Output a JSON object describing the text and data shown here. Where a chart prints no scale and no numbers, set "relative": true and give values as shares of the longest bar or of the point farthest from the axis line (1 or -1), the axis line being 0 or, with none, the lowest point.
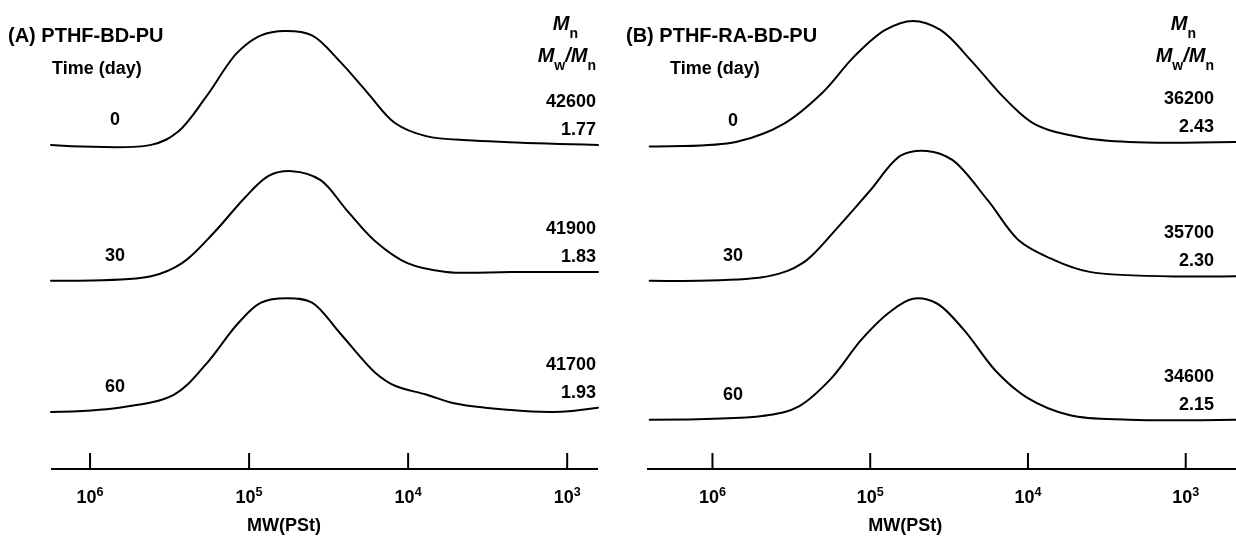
{
  "chart_data": [
    {
      "type": "line",
      "title": "(A) PTHF-BD-PU",
      "xlabel": "MW(PSt)",
      "legend_title": "Time (day)",
      "relative": true,
      "log": "x",
      "grid": false,
      "marker": "none",
      "line_style": "solid",
      "xlim": [
        1760000,
        640
      ],
      "xticks": [
        {
          "value": 1000000,
          "label": "10$^{6}$"
        },
        {
          "value": 100000,
          "label": "10$^{5}$"
        },
        {
          "value": 10000,
          "label": "10$^{4}$"
        },
        {
          "value": 1000,
          "label": "10$^{3}$"
        }
      ],
      "annotations": [
        "M$_{n}$",
        "M$_{w}$/M$_{n}$",
        "42600",
        "1.77",
        "41900",
        "1.83",
        "41700",
        "1.93"
      ],
      "series": [
        {
          "name": "0",
          "color": "#000000",
          "x": [
            1760000,
            413000,
            280000,
            186000,
            119000,
            84100,
            59400,
            40200,
            26800,
            18100,
            12100,
            7710,
            3900,
            640
          ],
          "values": [
            0.74,
            0.74,
            0.77,
            0.85,
            0.95,
            0.99,
            1,
            0.99,
            0.93,
            0.86,
            0.79,
            0.76,
            0.75,
            0.74
          ]
        },
        {
          "name": "30",
          "color": "#000000",
          "x": [
            1760000,
            413000,
            264000,
            166000,
            106000,
            74900,
            53700,
            35700,
            24200,
            16100,
            10100,
            5770,
            2190,
            640
          ],
          "values": [
            0.43,
            0.44,
            0.47,
            0.54,
            0.62,
            0.67,
            0.68,
            0.66,
            0.59,
            0.52,
            0.47,
            0.45,
            0.45,
            0.45
          ]
        },
        {
          "name": "60",
          "color": "#000000",
          "x": [
            1760000,
            658000,
            296000,
            186000,
            119000,
            84100,
            56900,
            40200,
            26800,
            16100,
            12100,
            7710,
            5140,
            3280,
            1240,
            640
          ],
          "values": [
            0.13,
            0.14,
            0.17,
            0.24,
            0.33,
            0.38,
            0.39,
            0.38,
            0.31,
            0.22,
            0.19,
            0.17,
            0.15,
            0.14,
            0.13,
            0.14
          ]
        }
      ]
    },
    {
      "type": "line",
      "title": "(B) PTHF-RA-BD-PU",
      "xlabel": "MW(PSt)",
      "legend_title": "Time (day)",
      "relative": true,
      "log": "x",
      "grid": false,
      "marker": "none",
      "line_style": "solid",
      "xlim": [
        2600000,
        480
      ],
      "xticks": [
        {
          "value": 1000000,
          "label": "10$^{6}$"
        },
        {
          "value": 100000,
          "label": "10$^{5}$"
        },
        {
          "value": 10000,
          "label": "10$^{4}$"
        },
        {
          "value": 1000,
          "label": "10$^{3}$"
        }
      ],
      "annotations": [
        "M$_{n}$",
        "M$_{w}$/M$_{n}$",
        "36200",
        "2.43",
        "35700",
        "2.30",
        "34600",
        "2.15"
      ],
      "series": [
        {
          "name": "0",
          "color": "#000000",
          "x": [
            2500000,
            710000,
            356000,
            201000,
            127000,
            80200,
            53600,
            35900,
            22700,
            14300,
            9060,
            4550,
            2290,
            480
          ],
          "values": [
            0.72,
            0.73,
            0.77,
            0.84,
            0.92,
            0.98,
            1,
            0.98,
            0.91,
            0.83,
            0.77,
            0.74,
            0.73,
            0.73
          ]
        },
        {
          "name": "30",
          "color": "#000000",
          "x": [
            2500000,
            448000,
            267000,
            160000,
            101000,
            63700,
            43800,
            30200,
            18000,
            11400,
            7190,
            4060,
            480
          ],
          "values": [
            0.42,
            0.43,
            0.46,
            0.54,
            0.62,
            0.7,
            0.71,
            0.69,
            0.6,
            0.51,
            0.47,
            0.44,
            0.43
          ]
        },
        {
          "name": "60",
          "color": "#000000",
          "x": [
            2500000,
            448000,
            283000,
            179000,
            113000,
            75500,
            53600,
            38000,
            25400,
            16100,
            10200,
            5410,
            2290,
            480
          ],
          "values": [
            0.11,
            0.12,
            0.14,
            0.2,
            0.29,
            0.35,
            0.38,
            0.37,
            0.31,
            0.22,
            0.16,
            0.12,
            0.11,
            0.11
          ]
        }
      ]
    }
  ]
}
